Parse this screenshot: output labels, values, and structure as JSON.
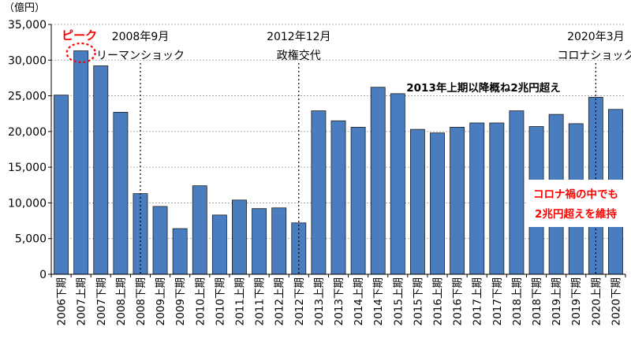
{
  "chart_data": {
    "type": "bar",
    "unit_label": "（億円）",
    "ylim": [
      0,
      35000
    ],
    "yticks": [
      "0",
      "5,000",
      "10,000",
      "15,000",
      "20,000",
      "25,000",
      "30,000",
      "35,000"
    ],
    "ytick_values": [
      0,
      5000,
      10000,
      15000,
      20000,
      25000,
      30000,
      35000
    ],
    "grid": true,
    "categories": [
      "2006下期",
      "2007上期",
      "2007下期",
      "2008上期",
      "2008下期",
      "2009上期",
      "2009下期",
      "2010上期",
      "2010下期",
      "2011上期",
      "2011下期",
      "2012上期",
      "2012下期",
      "2013上期",
      "2013下期",
      "2014上期",
      "2014下期",
      "2015上期",
      "2015下期",
      "2016上期",
      "2016下期",
      "2017上期",
      "2017下期",
      "2018上期",
      "2018下期",
      "2019上期",
      "2019下期",
      "2020上期",
      "2020下期"
    ],
    "values": [
      25100,
      31300,
      29200,
      22700,
      11300,
      9500,
      6400,
      12400,
      8300,
      10400,
      9200,
      9300,
      7200,
      22900,
      21500,
      20600,
      26200,
      25300,
      20300,
      19800,
      20600,
      21200,
      21200,
      22900,
      20700,
      22400,
      21100,
      24800,
      23100
    ],
    "bar_color": "#4a7dbf",
    "annotations": {
      "peak": {
        "text": "ピーク",
        "color": "#ff0000",
        "category_index": 1
      },
      "events": [
        {
          "line1": "2008年9月",
          "line2": "リーマンショック",
          "category_index": 4
        },
        {
          "line1": "2012年12月",
          "line2": "政権交代",
          "category_index": 12
        },
        {
          "line1": "2020年3月",
          "line2": "コロナショック",
          "category_index": 27
        }
      ],
      "trend_note": "2013年上期以降概ね2兆円超え",
      "callout": {
        "line1": "コロナ禍の中でも",
        "line2": "2兆円超えを維持",
        "color": "#ff0000"
      }
    }
  }
}
